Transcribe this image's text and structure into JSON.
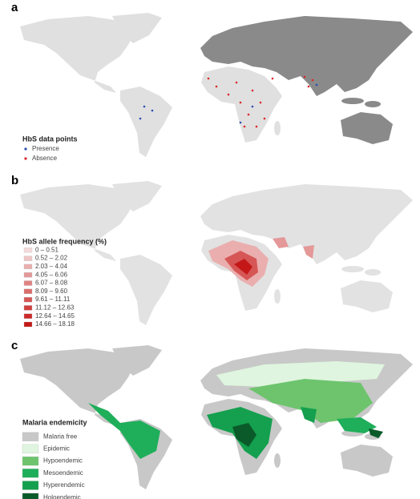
{
  "panels": [
    {
      "label": "a",
      "legend": {
        "title": "HbS data points",
        "items": [
          {
            "label": "Presence",
            "color": "#2b4fb0"
          },
          {
            "label": "Absence",
            "color": "#d9262a"
          }
        ]
      }
    },
    {
      "label": "b",
      "legend": {
        "title": "HbS allele frequency (%)",
        "items": [
          {
            "label": "0 – 0.51",
            "color": "#f4dada"
          },
          {
            "label": "0.52 – 2.02",
            "color": "#efc4c4"
          },
          {
            "label": "2.03 – 4.04",
            "color": "#eaaeae"
          },
          {
            "label": "4.05 – 6.06",
            "color": "#e59898"
          },
          {
            "label": "6.07 – 8.08",
            "color": "#e08282"
          },
          {
            "label": "8.09 – 9.60",
            "color": "#db6c6c"
          },
          {
            "label": "9.61 – 11.11",
            "color": "#d65656"
          },
          {
            "label": "11.12 – 12.63",
            "color": "#d14040"
          },
          {
            "label": "12.64 – 14.65",
            "color": "#cc2a2a"
          },
          {
            "label": "14.66 – 18.18",
            "color": "#c41818"
          }
        ]
      }
    },
    {
      "label": "c",
      "legend": {
        "title": "Malaria endemicity",
        "items": [
          {
            "label": "Malaria free",
            "color": "#c8c8c8"
          },
          {
            "label": "Epidemic",
            "color": "#dff5df"
          },
          {
            "label": "Hypoendemic",
            "color": "#6dc46d"
          },
          {
            "label": "Mesoendemic",
            "color": "#1fae5a"
          },
          {
            "label": "Hyperendemic",
            "color": "#14a04e"
          },
          {
            "label": "Holoendemic",
            "color": "#0b5a2a"
          }
        ]
      }
    }
  ]
}
